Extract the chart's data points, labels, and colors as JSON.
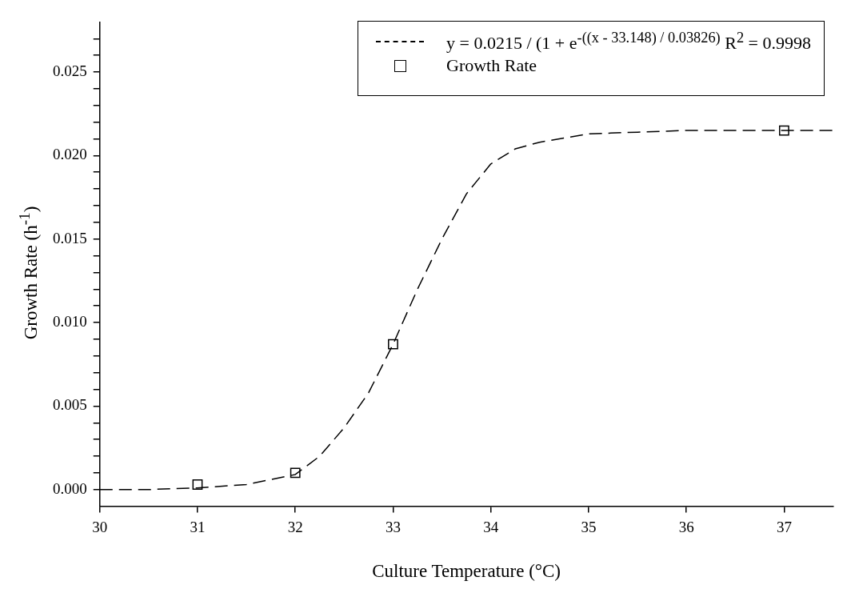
{
  "chart_data": {
    "type": "scatter",
    "xlabel": "Culture Temperature (°C)",
    "ylabel": "Growth Rate (h$^{-1}$)",
    "xlim": [
      30,
      37.5
    ],
    "xticks": [
      30,
      31,
      32,
      33,
      34,
      35,
      36,
      37
    ],
    "ylim": [
      -0.001,
      0.028
    ],
    "yticks": [
      {
        "value": 0,
        "label": "0.000"
      },
      {
        "value": 0.001,
        "label": null
      },
      {
        "value": 0.002,
        "label": null
      },
      {
        "value": 0.003,
        "label": null
      },
      {
        "value": 0.004,
        "label": null
      },
      {
        "value": 0.005,
        "label": "0.005"
      },
      {
        "value": 0.006,
        "label": null
      },
      {
        "value": 0.007,
        "label": null
      },
      {
        "value": 0.008,
        "label": null
      },
      {
        "value": 0.009,
        "label": null
      },
      {
        "value": 0.01,
        "label": "0.010"
      },
      {
        "value": 0.011,
        "label": null
      },
      {
        "value": 0.012,
        "label": null
      },
      {
        "value": 0.013,
        "label": null
      },
      {
        "value": 0.014,
        "label": null
      },
      {
        "value": 0.015,
        "label": "0.015"
      },
      {
        "value": 0.016,
        "label": null
      },
      {
        "value": 0.017,
        "label": null
      },
      {
        "value": 0.018,
        "label": null
      },
      {
        "value": 0.019,
        "label": null
      },
      {
        "value": 0.02,
        "label": "0.020"
      },
      {
        "value": 0.021,
        "label": null
      },
      {
        "value": 0.022,
        "label": null
      },
      {
        "value": 0.023,
        "label": null
      },
      {
        "value": 0.024,
        "label": null
      },
      {
        "value": 0.025,
        "label": "0.025"
      },
      {
        "value": 0.026,
        "label": null
      },
      {
        "value": 0.027,
        "label": null
      }
    ],
    "grid": false,
    "legend": "top right",
    "series": [
      {
        "name": "y = 0.0215 / (1 + e$^{-((x - 33.148) / 0.03826)}$ R$^{2}$ = 0.9998",
        "type": "line",
        "line_style": "dashed",
        "marker": "none",
        "color": "#000000",
        "x": [
          30,
          30.5,
          31,
          31.5,
          32,
          32.25,
          32.5,
          32.75,
          33,
          33.25,
          33.5,
          33.75,
          34,
          34.25,
          34.5,
          35,
          35.5,
          36,
          37,
          37.5
        ],
        "values": [
          0,
          0,
          0.0001,
          0.0003,
          0.0009,
          0.002,
          0.0037,
          0.0058,
          0.0087,
          0.012,
          0.015,
          0.0177,
          0.0195,
          0.0204,
          0.0208,
          0.0213,
          0.0214,
          0.0215,
          0.0215,
          0.0215
        ]
      },
      {
        "name": "Growth Rate",
        "marker": "square",
        "color": "#000000",
        "x": [
          31,
          32,
          33,
          37
        ],
        "values": [
          0.0003,
          0.001,
          0.0087,
          0.0215
        ]
      }
    ]
  }
}
